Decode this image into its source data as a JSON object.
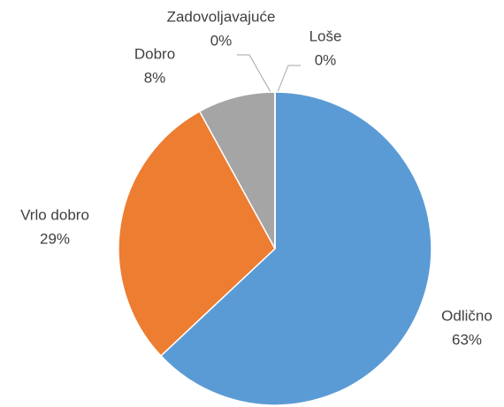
{
  "chart_data": {
    "type": "pie",
    "categories": [
      "Odlično",
      "Vrlo dobro",
      "Dobro",
      "Zadovoljavajuće",
      "Loše"
    ],
    "values": [
      63,
      29,
      8,
      0,
      0
    ],
    "value_labels": [
      "63%",
      "29%",
      "8%",
      "0%",
      "0%"
    ],
    "colors": [
      "#5b9bd5",
      "#ed7d31",
      "#a5a5a5",
      "#ffc000",
      "#4472c4"
    ]
  }
}
